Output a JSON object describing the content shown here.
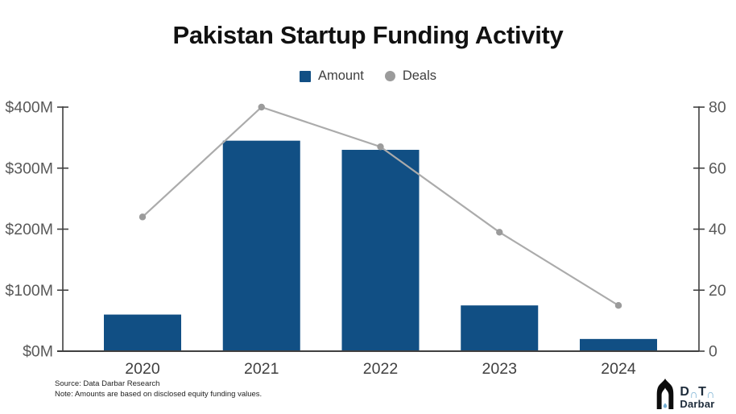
{
  "title": "Pakistan Startup Funding Activity",
  "legend": {
    "items": [
      {
        "label": "Amount",
        "marker": "square"
      },
      {
        "label": "Deals",
        "marker": "circle"
      }
    ]
  },
  "chart_data": {
    "type": "bar",
    "subtype": "bar-with-line-overlay",
    "title": "Pakistan Startup Funding Activity",
    "categories": [
      "2020",
      "2021",
      "2022",
      "2023",
      "2024"
    ],
    "series": [
      {
        "name": "Amount",
        "type": "bar",
        "axis": "left",
        "unit": "USD millions",
        "values": [
          60,
          345,
          330,
          75,
          20
        ],
        "color": "#114f84"
      },
      {
        "name": "Deals",
        "type": "line",
        "axis": "right",
        "unit": "deals",
        "values": [
          44,
          80,
          67,
          39,
          15
        ],
        "color": "#ababab"
      }
    ],
    "left_axis": {
      "ticks": [
        0,
        100,
        200,
        300,
        400
      ],
      "labels": [
        "$0M",
        "$100M",
        "$200M",
        "$300M",
        "$400M"
      ],
      "range": [
        0,
        400
      ]
    },
    "right_axis": {
      "ticks": [
        0,
        20,
        40,
        60,
        80
      ],
      "labels": [
        "0",
        "20",
        "40",
        "60",
        "80"
      ],
      "range": [
        0,
        80
      ]
    },
    "grid": false,
    "legend_position": "top"
  },
  "footer": {
    "source": "Source: Data Darbar Research",
    "note": "Note: Amounts are based on disclosed equity funding values."
  },
  "logo": {
    "d": "D",
    "t": "T",
    "bottom": "Darbar"
  },
  "icons": {
    "arch": "∩"
  },
  "colors": {
    "bar": "#114f84",
    "line": "#ababab",
    "marker": "#9b9b9b",
    "axis_line": "#404040",
    "tick_label": "#595959",
    "year_label": "#404040",
    "title": "#111111",
    "legend_text": "#3f3f3f",
    "logo_dark": "#1d2b3a",
    "logo_blue": "#74add1"
  }
}
